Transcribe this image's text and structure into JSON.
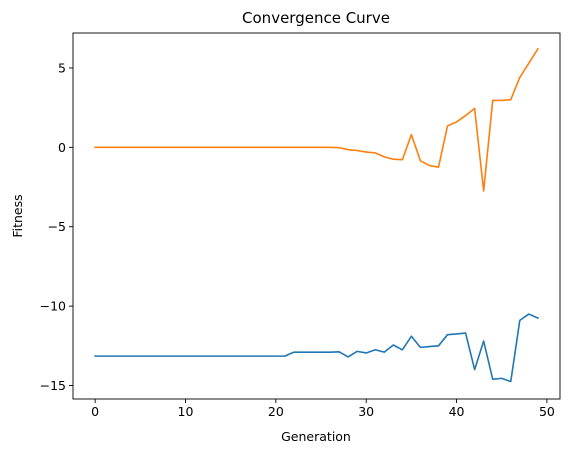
{
  "chart_data": {
    "type": "line",
    "title": "Convergence Curve",
    "xlabel": "Generation",
    "ylabel": "Fitness",
    "xlim": [
      -2.45,
      51.45
    ],
    "ylim": [
      -15.85,
      7.2
    ],
    "xticks": [
      0,
      10,
      20,
      30,
      40,
      50
    ],
    "yticks": [
      -15,
      -10,
      -5,
      0,
      5
    ],
    "xtick_labels": [
      "0",
      "10",
      "20",
      "30",
      "40",
      "50"
    ],
    "ytick_labels": [
      "−15",
      "−10",
      "−5",
      "0",
      "5"
    ],
    "grid": false,
    "x": [
      0,
      1,
      2,
      3,
      4,
      5,
      6,
      7,
      8,
      9,
      10,
      11,
      12,
      13,
      14,
      15,
      16,
      17,
      18,
      19,
      20,
      21,
      22,
      23,
      24,
      25,
      26,
      27,
      28,
      29,
      30,
      31,
      32,
      33,
      34,
      35,
      36,
      37,
      38,
      39,
      40,
      41,
      42,
      43,
      44,
      45,
      46,
      47,
      48,
      49
    ],
    "series": [
      {
        "color": "#1f77b4",
        "values": [
          -13.15,
          -13.15,
          -13.15,
          -13.15,
          -13.15,
          -13.15,
          -13.15,
          -13.15,
          -13.15,
          -13.15,
          -13.15,
          -13.15,
          -13.15,
          -13.15,
          -13.15,
          -13.15,
          -13.15,
          -13.15,
          -13.15,
          -13.15,
          -13.15,
          -13.15,
          -12.9,
          -12.9,
          -12.9,
          -12.9,
          -12.9,
          -12.88,
          -13.2,
          -12.85,
          -12.95,
          -12.75,
          -12.9,
          -12.45,
          -12.75,
          -11.9,
          -12.6,
          -12.55,
          -12.5,
          -11.8,
          -11.75,
          -11.7,
          -14.0,
          -12.2,
          -14.6,
          -14.55,
          -14.75,
          -10.9,
          -10.5,
          -10.75
        ]
      },
      {
        "color": "#ff7f0e",
        "values": [
          0,
          0,
          0,
          0,
          0,
          0,
          0,
          0,
          0,
          0,
          0,
          0,
          0,
          0,
          0,
          0,
          0,
          0,
          0,
          0,
          0,
          0,
          0,
          0,
          0,
          0,
          0,
          -0.02,
          -0.15,
          -0.2,
          -0.3,
          -0.35,
          -0.6,
          -0.75,
          -0.78,
          0.8,
          -0.85,
          -1.15,
          -1.25,
          1.35,
          1.6,
          2.0,
          2.45,
          -2.75,
          2.95,
          2.95,
          3.0,
          4.4,
          5.3,
          6.2
        ]
      }
    ]
  }
}
